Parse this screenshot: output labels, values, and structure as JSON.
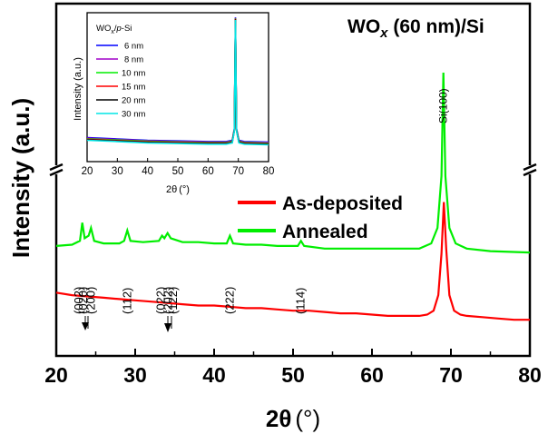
{
  "chart_data": [
    {
      "type": "line",
      "title": "WO",
      "title_sub": "x",
      "title_rest": " (60 nm)/Si",
      "xlabel_main": "2θ",
      "xlabel_unit": "(°)",
      "ylabel": "Intensity (a.u.)",
      "xlim": [
        20,
        80
      ],
      "x_ticks": [
        "20",
        "30",
        "40",
        "50",
        "60",
        "70",
        "80"
      ],
      "y_ticks_shown": false,
      "axis_break": "y",
      "legend_position": "center-right",
      "series": [
        {
          "name": "As-deposited",
          "color": "#ff0000",
          "points": [
            [
              20,
              0.15
            ],
            [
              22,
              0.14
            ],
            [
              24,
              0.135
            ],
            [
              26,
              0.13
            ],
            [
              28,
              0.125
            ],
            [
              30,
              0.12
            ],
            [
              32,
              0.115
            ],
            [
              34,
              0.11
            ],
            [
              36,
              0.105
            ],
            [
              38,
              0.1
            ],
            [
              40,
              0.1
            ],
            [
              42,
              0.095
            ],
            [
              44,
              0.09
            ],
            [
              46,
              0.09
            ],
            [
              48,
              0.085
            ],
            [
              50,
              0.08
            ],
            [
              52,
              0.08
            ],
            [
              54,
              0.075
            ],
            [
              56,
              0.07
            ],
            [
              58,
              0.07
            ],
            [
              60,
              0.065
            ],
            [
              62,
              0.06
            ],
            [
              64,
              0.06
            ],
            [
              66,
              0.06
            ],
            [
              67,
              0.065
            ],
            [
              67.8,
              0.08
            ],
            [
              68.4,
              0.14
            ],
            [
              68.8,
              0.3
            ],
            [
              69.1,
              0.5
            ],
            [
              69.4,
              0.32
            ],
            [
              69.8,
              0.14
            ],
            [
              70.4,
              0.08
            ],
            [
              71.2,
              0.065
            ],
            [
              72,
              0.06
            ],
            [
              74,
              0.055
            ],
            [
              76,
              0.05
            ],
            [
              78,
              0.045
            ],
            [
              80,
              0.045
            ]
          ]
        },
        {
          "name": "Annealed",
          "color": "#00ee00",
          "points": [
            [
              20,
              0.33
            ],
            [
              22,
              0.335
            ],
            [
              23,
              0.35
            ],
            [
              23.3,
              0.42
            ],
            [
              23.6,
              0.36
            ],
            [
              24.1,
              0.37
            ],
            [
              24.4,
              0.4
            ],
            [
              24.8,
              0.35
            ],
            [
              26,
              0.34
            ],
            [
              28,
              0.34
            ],
            [
              28.6,
              0.35
            ],
            [
              29,
              0.39
            ],
            [
              29.4,
              0.35
            ],
            [
              31,
              0.345
            ],
            [
              33,
              0.35
            ],
            [
              33.4,
              0.37
            ],
            [
              33.7,
              0.36
            ],
            [
              34.1,
              0.38
            ],
            [
              34.5,
              0.36
            ],
            [
              36,
              0.345
            ],
            [
              38,
              0.345
            ],
            [
              40,
              0.34
            ],
            [
              41.6,
              0.34
            ],
            [
              42,
              0.37
            ],
            [
              42.4,
              0.34
            ],
            [
              44,
              0.335
            ],
            [
              46,
              0.335
            ],
            [
              48,
              0.33
            ],
            [
              50,
              0.33
            ],
            [
              50.6,
              0.33
            ],
            [
              51,
              0.35
            ],
            [
              51.4,
              0.33
            ],
            [
              54,
              0.32
            ],
            [
              58,
              0.32
            ],
            [
              62,
              0.32
            ],
            [
              66,
              0.32
            ],
            [
              67.5,
              0.34
            ],
            [
              68.3,
              0.4
            ],
            [
              68.8,
              0.6
            ],
            [
              69.05,
              1.0
            ],
            [
              69.3,
              0.6
            ],
            [
              69.8,
              0.4
            ],
            [
              70.6,
              0.34
            ],
            [
              72,
              0.32
            ],
            [
              75,
              0.31
            ],
            [
              80,
              0.305
            ]
          ]
        }
      ],
      "annotations": [
        {
          "text": "(002)",
          "x": 22.9
        },
        {
          "text": "(020)",
          "x": 23.9
        },
        {
          "text": "(200)",
          "x": 24.4
        },
        {
          "text": "(112)",
          "x": 29.0
        },
        {
          "text": "(022)",
          "x": 33.3
        },
        {
          "text": "(202)",
          "x": 34.2
        },
        {
          "text": "(122)",
          "x": 34.8
        },
        {
          "text": "(222)",
          "x": 42.0
        },
        {
          "text": "(114)",
          "x": 51.0
        },
        {
          "text": "Si(100)",
          "x": 69.05
        }
      ]
    },
    {
      "type": "line",
      "inset": true,
      "title_main": "WO",
      "title_sub": "x",
      "title_mid": "/",
      "title_italic": "p",
      "title_rest": "-Si",
      "xlabel_main": "2θ",
      "xlabel_unit": "(°)",
      "ylabel": "Intensity (a.u.)",
      "xlim": [
        20,
        80
      ],
      "x_ticks": [
        "20",
        "30",
        "40",
        "50",
        "60",
        "70",
        "80"
      ],
      "legend_position": "top-left",
      "series": [
        {
          "name": "6 nm",
          "color": "#0000ff"
        },
        {
          "name": "8 nm",
          "color": "#a000c8"
        },
        {
          "name": "10 nm",
          "color": "#00ee00"
        },
        {
          "name": "15 nm",
          "color": "#ff0000"
        },
        {
          "name": "20 nm",
          "color": "#000000"
        },
        {
          "name": "30 nm",
          "color": "#00e5e5"
        }
      ],
      "trace_points": [
        [
          20,
          0.08
        ],
        [
          30,
          0.07
        ],
        [
          40,
          0.06
        ],
        [
          50,
          0.055
        ],
        [
          60,
          0.05
        ],
        [
          66,
          0.05
        ],
        [
          68,
          0.06
        ],
        [
          68.7,
          0.15
        ],
        [
          69.05,
          1.0
        ],
        [
          69.4,
          0.15
        ],
        [
          70.2,
          0.06
        ],
        [
          72,
          0.05
        ],
        [
          80,
          0.045
        ]
      ]
    }
  ]
}
